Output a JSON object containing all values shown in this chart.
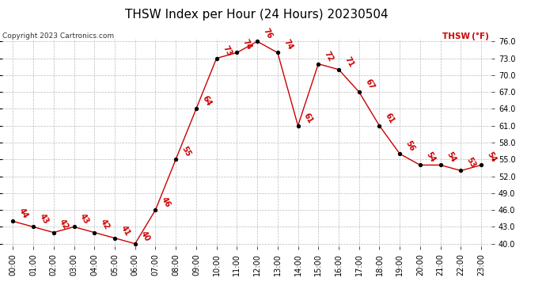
{
  "title": "THSW Index per Hour (24 Hours) 20230504",
  "copyright": "Copyright 2023 Cartronics.com",
  "legend_label": "THSW (°F)",
  "hours": [
    0,
    1,
    2,
    3,
    4,
    5,
    6,
    7,
    8,
    9,
    10,
    11,
    12,
    13,
    14,
    15,
    16,
    17,
    18,
    19,
    20,
    21,
    22,
    23
  ],
  "values": [
    44,
    43,
    42,
    43,
    42,
    41,
    40,
    46,
    55,
    64,
    73,
    74,
    76,
    74,
    61,
    72,
    71,
    67,
    61,
    56,
    54,
    54,
    53,
    54
  ],
  "ylim_min": 40.0,
  "ylim_max": 76.0,
  "yticks": [
    40.0,
    43.0,
    46.0,
    49.0,
    52.0,
    55.0,
    58.0,
    61.0,
    64.0,
    67.0,
    70.0,
    73.0,
    76.0
  ],
  "line_color": "#cc0000",
  "marker_color": "#000000",
  "label_color": "#cc0000",
  "grid_color": "#bbbbbb",
  "background_color": "#ffffff",
  "title_fontsize": 11,
  "label_fontsize": 7,
  "tick_fontsize": 7,
  "copyright_fontsize": 6.5
}
